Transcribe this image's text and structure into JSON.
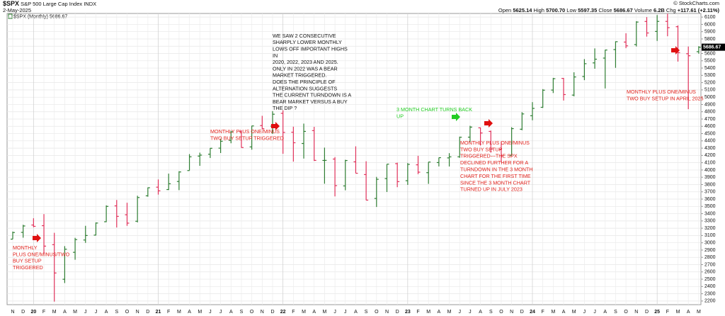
{
  "header": {
    "symbol": "$SPX",
    "name": "S&P 500 Large Cap Index",
    "exchange": "INDX",
    "date": "2-May-2025",
    "credit": "© StockCharts.com",
    "quote": [
      {
        "label": "Open",
        "value": "5625.14"
      },
      {
        "label": "High",
        "value": "5700.70"
      },
      {
        "label": "Low",
        "value": "5597.35"
      },
      {
        "label": "Close",
        "value": "5686.67"
      },
      {
        "label": "Volume",
        "value": "6.2B"
      },
      {
        "label": "Chg",
        "value": "+117.61 (+2.11%)"
      }
    ]
  },
  "chart_data": {
    "type": "ohlc",
    "legend": "$SPX (Monthly)",
    "up_color": "#2e7d32",
    "down_color": "#e0315a",
    "grid": true,
    "categories": [
      "N",
      "D",
      "20",
      "F",
      "M",
      "A",
      "M",
      "J",
      "J",
      "A",
      "S",
      "O",
      "N",
      "D",
      "21",
      "F",
      "M",
      "A",
      "M",
      "J",
      "J",
      "A",
      "S",
      "O",
      "N",
      "D",
      "22",
      "F",
      "M",
      "A",
      "M",
      "J",
      "J",
      "A",
      "S",
      "O",
      "N",
      "D",
      "23",
      "F",
      "M",
      "A",
      "M",
      "J",
      "J",
      "A",
      "S",
      "O",
      "N",
      "D",
      "24",
      "F",
      "M",
      "A",
      "M",
      "J",
      "J",
      "A",
      "S",
      "O",
      "N",
      "D",
      "25",
      "F",
      "M",
      "A",
      "M"
    ],
    "open": [
      3050,
      3143,
      3244,
      3235,
      2974,
      2499,
      2869,
      3038,
      3105,
      3289,
      3507,
      3385,
      3296,
      3645,
      3764,
      3731,
      3842,
      3992,
      4191,
      4217,
      4300,
      4406,
      4528,
      4317,
      4610,
      4602,
      4778,
      4519,
      4364,
      4541,
      4131,
      4150,
      3781,
      4112,
      3937,
      3609,
      3882,
      4087,
      3853,
      4071,
      3963,
      4102,
      4166,
      4181,
      4451,
      4579,
      4530,
      4285,
      4201,
      4560,
      4745,
      4861,
      5098,
      5258,
      5029,
      5284,
      5471,
      5537,
      5654,
      5757,
      5723,
      6040,
      5903,
      6041,
      5968,
      5597,
      5625.14
    ],
    "high": [
      3154,
      3247,
      3337,
      3394,
      3137,
      2954,
      3068,
      3233,
      3280,
      3514,
      3588,
      3550,
      3646,
      3760,
      3870,
      3950,
      3983,
      4218,
      4238,
      4302,
      4430,
      4538,
      4546,
      4608,
      4744,
      4808,
      4819,
      4595,
      4637,
      4593,
      4307,
      4177,
      4140,
      4325,
      4120,
      3905,
      4080,
      4101,
      4095,
      4195,
      4110,
      4170,
      4231,
      4458,
      4607,
      4584,
      4541,
      4393,
      4588,
      4794,
      4932,
      5111,
      5265,
      5264,
      5342,
      5523,
      5670,
      5651,
      5767,
      5878,
      6044,
      6100,
      6128,
      6147,
      5986,
      5696,
      5700.7
    ],
    "low": [
      3050,
      3070,
      3214,
      2855,
      2192,
      2447,
      2767,
      2999,
      3101,
      3284,
      3210,
      3233,
      3280,
      3633,
      3662,
      3725,
      3723,
      3992,
      4057,
      4165,
      4233,
      4367,
      4306,
      4279,
      4560,
      4495,
      4223,
      4115,
      4157,
      4124,
      3811,
      3637,
      3721,
      3955,
      3585,
      3492,
      3698,
      3764,
      3795,
      3943,
      3809,
      4049,
      4048,
      4167,
      4385,
      4336,
      4238,
      4104,
      4197,
      4546,
      4683,
      4853,
      5057,
      4954,
      5012,
      5234,
      5391,
      5120,
      5403,
      5674,
      5696,
      5832,
      5773,
      5837,
      5489,
      4835,
      5597.35
    ],
    "close": [
      3141,
      3231,
      3226,
      2954,
      2585,
      2912,
      3044,
      3100,
      3271,
      3500,
      3363,
      3270,
      3622,
      3756,
      3714,
      3811,
      3973,
      4181,
      4204,
      4298,
      4395,
      4523,
      4308,
      4605,
      4567,
      4766,
      4516,
      4374,
      4530,
      4132,
      4132,
      3785,
      4130,
      3955,
      3586,
      3872,
      4080,
      3840,
      4077,
      3970,
      4109,
      4169,
      4180,
      4450,
      4589,
      4508,
      4288,
      4194,
      4568,
      4770,
      4846,
      5096,
      5254,
      5036,
      5278,
      5460,
      5522,
      5648,
      5762,
      5705,
      6032,
      5882,
      6041,
      5955,
      5612,
      5569,
      5686.67
    ],
    "ylim": [
      2150,
      6150
    ],
    "yticks": [
      2200,
      2300,
      2400,
      2500,
      2600,
      2700,
      2800,
      2900,
      3000,
      3100,
      3200,
      3300,
      3400,
      3500,
      3600,
      3700,
      3800,
      3900,
      4000,
      4100,
      4200,
      4300,
      4400,
      4500,
      4600,
      4700,
      4800,
      4900,
      5000,
      5100,
      5200,
      5300,
      5400,
      5500,
      5600,
      5700,
      5800,
      5900,
      6000,
      6100
    ],
    "annotations": [
      {
        "color": "#e0201a",
        "lines": [
          "MONTHLY",
          "PLUS ONE/MINUS/TWO",
          "BUY SETUP",
          "TRIGGERED"
        ]
      },
      {
        "color": "#e0201a",
        "lines": [
          "MONTHLY PLUS ONE/MINUS",
          "TWO BUY SETUP TRIGGERED"
        ]
      },
      {
        "color": "#111111",
        "lines": [
          "WE SAW 2 CONSECUTIVE",
          "SHARPLY LOWER MONTHLY",
          "LOWS OFF IMPORTANT HIGHS",
          "IN",
          "2020, 2022, 2023 AND 2025.",
          "ONLY IN 2022 WAS A BEAR",
          "MARKET TRIGGERED.",
          "DOES THE  PRINCIPLE OF",
          "ALTERNATION SUGGESTS",
          "THE CURRENT TURNDOWN IS A",
          "BEAR MARKET VERSUS A BUY",
          " THE DIP ?"
        ]
      },
      {
        "color": "#22cc22",
        "lines": [
          "3 MONTH CHART TURNS BACK",
          "UP"
        ]
      },
      {
        "color": "#e0201a",
        "lines": [
          "MONTHLY PLUS ONE/MINUS",
          "TWO BUY SETUP",
          "TRIGGERED---THE SPX",
          "DECLINED FURTHER FOR A",
          "TURNDOWN IN THE 3 MONTH",
          "CHART FOR THE FIRST TIME",
          "SINCE THE 3 MONTH CHART",
          "TURNED UP IN JULY 2023"
        ]
      },
      {
        "color": "#e0201a",
        "lines": [
          "MONTHLY PLUS ONE/MINUS",
          "TWO BUY SETUP IN APRIL 2025"
        ]
      }
    ]
  }
}
